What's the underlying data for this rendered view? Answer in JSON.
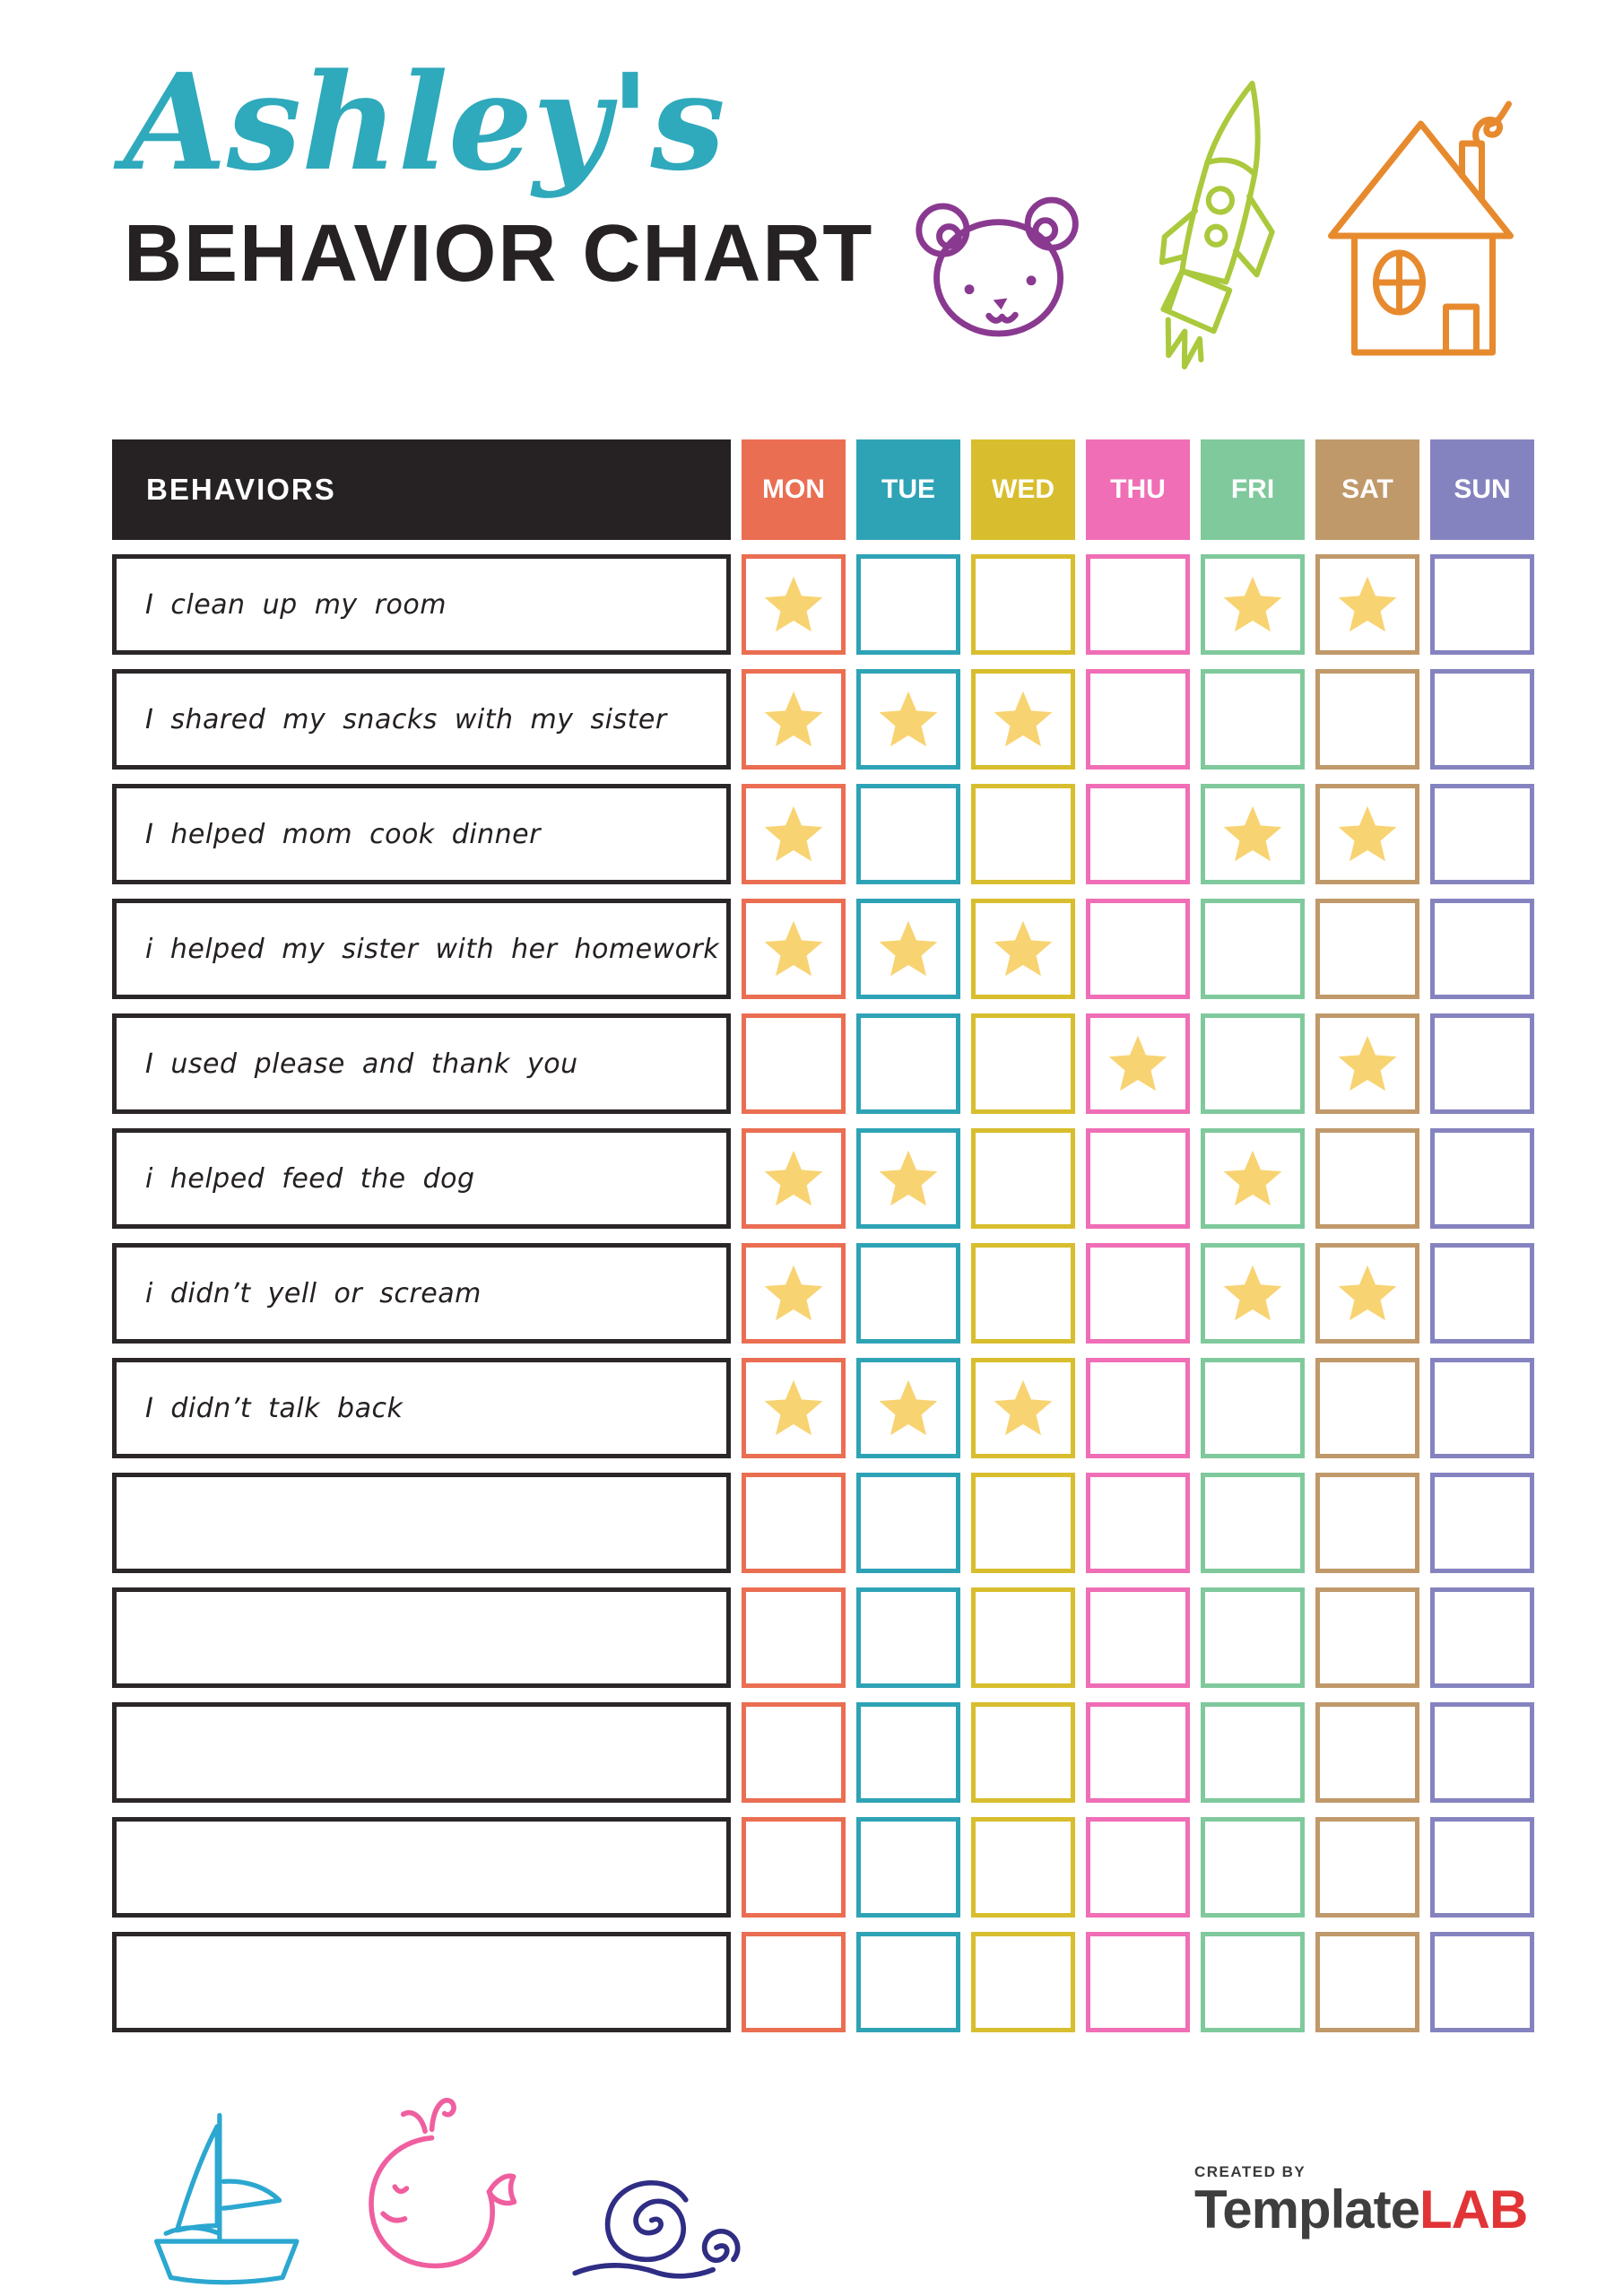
{
  "title": {
    "name": "Ashley's",
    "subtitle": "BEHAVIOR CHART"
  },
  "table": {
    "behaviors_header": "BEHAVIORS",
    "days": [
      {
        "label": "MON",
        "color": "#ea6e52"
      },
      {
        "label": "TUE",
        "color": "#2fa3b6"
      },
      {
        "label": "WED",
        "color": "#d8be2e"
      },
      {
        "label": "THU",
        "color": "#ef6eb5"
      },
      {
        "label": "FRI",
        "color": "#7fc99c"
      },
      {
        "label": "SAT",
        "color": "#c0996b"
      },
      {
        "label": "SUN",
        "color": "#8583bf"
      }
    ],
    "rows": [
      {
        "behavior": "I clean up my room",
        "stars": [
          "MON",
          "FRI",
          "SAT"
        ]
      },
      {
        "behavior": "I shared my snacks with my sister",
        "stars": [
          "MON",
          "TUE",
          "WED"
        ]
      },
      {
        "behavior": "I helped mom cook dinner",
        "stars": [
          "MON",
          "FRI",
          "SAT"
        ]
      },
      {
        "behavior": "i helped my sister with her homework",
        "stars": [
          "MON",
          "TUE",
          "WED"
        ]
      },
      {
        "behavior": "I used please and thank you",
        "stars": [
          "THU",
          "SAT"
        ]
      },
      {
        "behavior": "i helped feed the dog",
        "stars": [
          "MON",
          "TUE",
          "FRI"
        ]
      },
      {
        "behavior": "i didn’t yell or scream",
        "stars": [
          "MON",
          "FRI",
          "SAT"
        ]
      },
      {
        "behavior": "I didn’t talk back",
        "stars": [
          "MON",
          "TUE",
          "WED"
        ]
      },
      {
        "behavior": "",
        "stars": []
      },
      {
        "behavior": "",
        "stars": []
      },
      {
        "behavior": "",
        "stars": []
      },
      {
        "behavior": "",
        "stars": []
      },
      {
        "behavior": "",
        "stars": []
      }
    ],
    "star_color": "#f8d372"
  },
  "decorations": {
    "top_icons": [
      "bear-icon",
      "rocket-icon",
      "house-icon"
    ],
    "bottom_icons": [
      "sailboat-icon",
      "whale-icon",
      "snail-icon"
    ],
    "colors": {
      "bear": "#8a3990",
      "rocket": "#abc93d",
      "house": "#e78a2e",
      "sailboat": "#2ba7d0",
      "whale": "#ef5f9f",
      "snail": "#2f2d84"
    }
  },
  "footer": {
    "created_by": "CREATED BY",
    "brand_dark": "Template",
    "brand_red": "LAB"
  },
  "colors": {
    "title_script": "#2fa9bc",
    "title_main": "#262223",
    "header_bg": "#262223",
    "row_border": "#2b2627"
  }
}
